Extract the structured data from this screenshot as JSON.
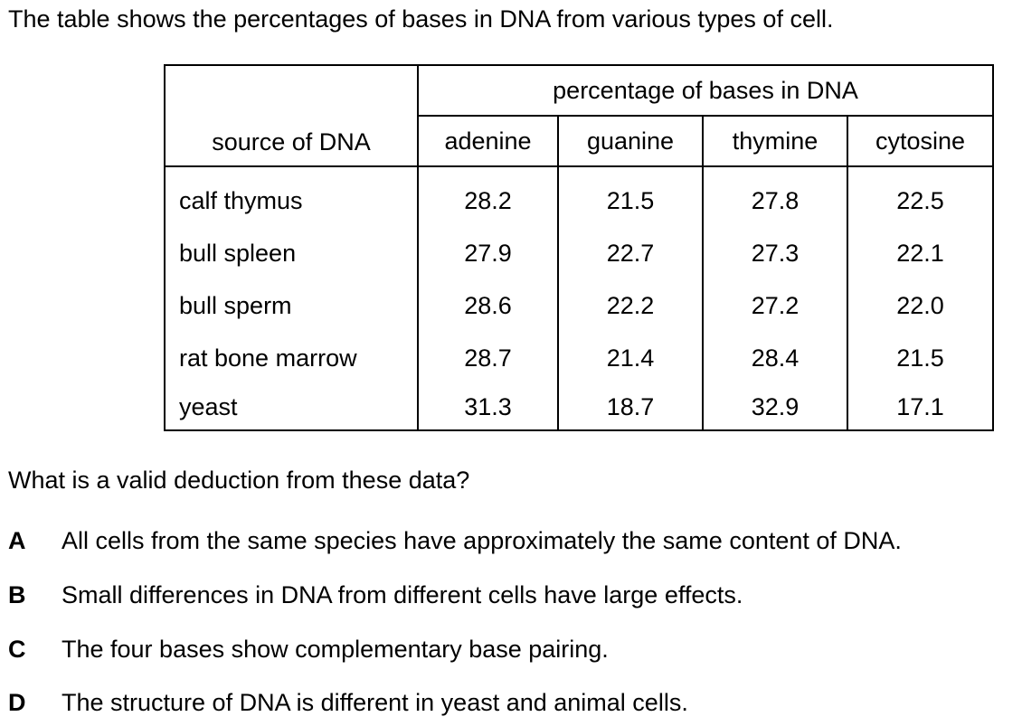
{
  "intro": "The table shows the percentages of bases in DNA from various types of cell.",
  "table": {
    "group_header": "percentage of bases in DNA",
    "source_header": "source of DNA",
    "columns": [
      "adenine",
      "guanine",
      "thymine",
      "cytosine"
    ],
    "rows": [
      {
        "source": "calf thymus",
        "values": [
          "28.2",
          "21.5",
          "27.8",
          "22.5"
        ]
      },
      {
        "source": "bull spleen",
        "values": [
          "27.9",
          "22.7",
          "27.3",
          "22.1"
        ]
      },
      {
        "source": "bull sperm",
        "values": [
          "28.6",
          "22.2",
          "27.2",
          "22.0"
        ]
      },
      {
        "source": "rat bone marrow",
        "values": [
          "28.7",
          "21.4",
          "28.4",
          "21.5"
        ]
      },
      {
        "source": "yeast",
        "values": [
          "31.3",
          "18.7",
          "32.9",
          "17.1"
        ]
      }
    ]
  },
  "question": "What is a valid deduction from these data?",
  "options": [
    {
      "letter": "A",
      "text": "All cells from the same species have approximately the same content of DNA."
    },
    {
      "letter": "B",
      "text": "Small differences in DNA from different cells have large effects."
    },
    {
      "letter": "C",
      "text": "The four bases show complementary base pairing."
    },
    {
      "letter": "D",
      "text": "The structure of DNA is different in yeast and animal cells."
    }
  ]
}
